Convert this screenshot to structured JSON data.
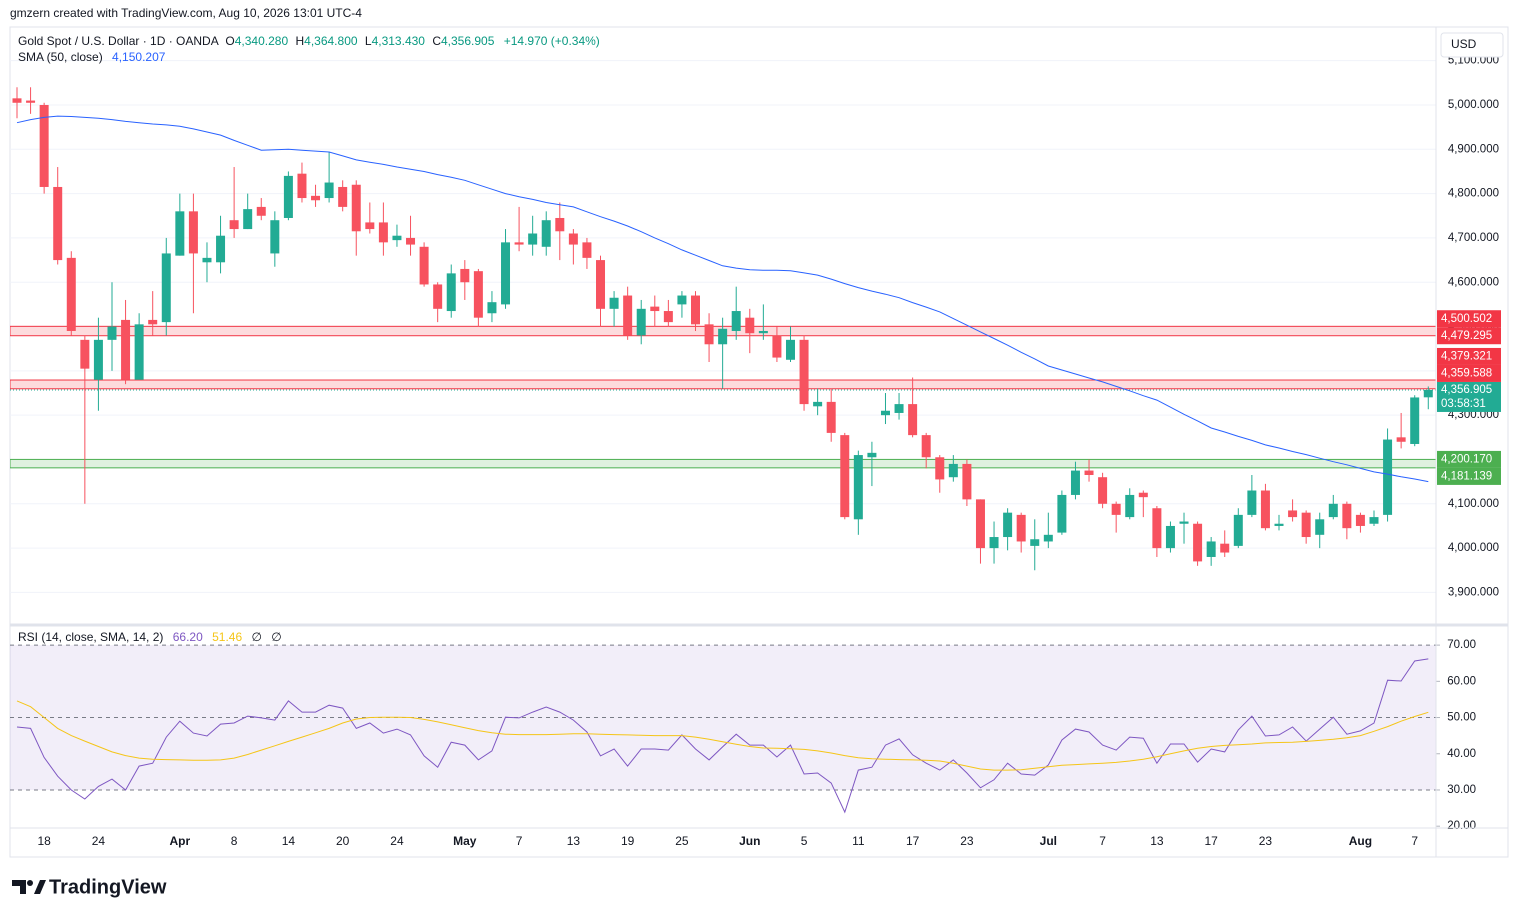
{
  "watermark": "gmzern created with TradingView.com, Aug 10, 2026 13:01 UTC-4",
  "currency": "USD",
  "brand": "TradingView",
  "legend": {
    "symbol": "Gold Spot / U.S. Dollar · 1D · OANDA",
    "ohlc": [
      {
        "key": "O",
        "value": "4,340.280"
      },
      {
        "key": "H",
        "value": "4,364.800"
      },
      {
        "key": "L",
        "value": "4,313.430"
      },
      {
        "key": "C",
        "value": "4,356.905"
      }
    ],
    "change": "+14.970 (+0.34%)",
    "sma_label": "SMA (50, close)",
    "sma_value": "4,150.207",
    "rsi_label": "RSI (14, close, SMA, 14, 2)",
    "rsi_value": "66.20",
    "rsi_sma_value": "51.46",
    "rsi_extra": [
      "∅",
      "∅"
    ]
  },
  "chart_data": {
    "type": "candlestick",
    "categories": [
      null,
      null,
      "18",
      null,
      null,
      null,
      "24",
      null,
      null,
      null,
      null,
      null,
      "Apr",
      null,
      null,
      null,
      "8",
      null,
      null,
      null,
      "14",
      null,
      null,
      null,
      "20",
      null,
      null,
      null,
      "24",
      null,
      null,
      null,
      null,
      "May",
      null,
      null,
      null,
      "7",
      null,
      null,
      null,
      "13",
      null,
      null,
      null,
      "19",
      null,
      null,
      null,
      "25",
      null,
      null,
      null,
      null,
      "Jun",
      null,
      null,
      null,
      "5",
      null,
      null,
      null,
      "11",
      null,
      null,
      null,
      "17",
      null,
      null,
      null,
      "23",
      null,
      null,
      null,
      null,
      null,
      "Jul",
      null,
      null,
      null,
      "7",
      null,
      null,
      null,
      "13",
      null,
      null,
      null,
      "17",
      null,
      null,
      null,
      "23",
      null,
      null,
      null,
      null,
      null,
      null,
      "Aug",
      null,
      null,
      null,
      "7",
      null
    ],
    "open": [
      5015,
      5010,
      5000,
      4815,
      4655,
      4470,
      4380,
      4470,
      4515,
      4380,
      4515,
      4510,
      4660,
      4760,
      4645,
      4645,
      4740,
      4720,
      4770,
      4665,
      4745,
      4845,
      4795,
      4790,
      4815,
      4820,
      4735,
      4735,
      4695,
      4700,
      4680,
      4595,
      4535,
      4630,
      4625,
      4530,
      4550,
      4690,
      4685,
      4680,
      4745,
      4710,
      4690,
      4650,
      4540,
      4570,
      4480,
      4545,
      4535,
      4550,
      4570,
      4505,
      4460,
      4490,
      4520,
      4485,
      4480,
      4425,
      4470,
      4320,
      4330,
      4255,
      4065,
      4205,
      4300,
      4305,
      4325,
      4255,
      4205,
      4160,
      4190,
      4110,
      4000,
      4025,
      4075,
      4005,
      4015,
      4035,
      4120,
      4175,
      4160,
      4100,
      4070,
      4125,
      4090,
      4000,
      4055,
      4055,
      3980,
      4010,
      4005,
      4075,
      4130,
      4050,
      4085,
      4080,
      4030,
      4070,
      4100,
      4075,
      4055,
      4075,
      4250,
      4235,
      4340.28
    ],
    "high": [
      5040,
      5040,
      5005,
      4860,
      4670,
      4480,
      4520,
      4600,
      4560,
      4530,
      4580,
      4700,
      4800,
      4800,
      4690,
      4750,
      4860,
      4800,
      4790,
      4760,
      4850,
      4870,
      4820,
      4895,
      4830,
      4830,
      4780,
      4780,
      4730,
      4750,
      4690,
      4600,
      4640,
      4650,
      4630,
      4580,
      4720,
      4770,
      4750,
      4760,
      4780,
      4720,
      4700,
      4660,
      4580,
      4590,
      4560,
      4570,
      4560,
      4580,
      4580,
      4530,
      4520,
      4590,
      4540,
      4550,
      4500,
      4500,
      4480,
      4360,
      4360,
      4260,
      4220,
      4240,
      4350,
      4350,
      4385,
      4260,
      4210,
      4210,
      4200,
      4110,
      4060,
      4090,
      4080,
      4065,
      4080,
      4130,
      4195,
      4200,
      4170,
      4105,
      4135,
      4130,
      4095,
      4060,
      4080,
      4060,
      4025,
      4040,
      4090,
      4165,
      4145,
      4075,
      4110,
      4085,
      4080,
      4120,
      4105,
      4080,
      4085,
      4270,
      4305,
      4345,
      4364.8
    ],
    "low": [
      4970,
      4980,
      4800,
      4640,
      4480,
      4100,
      4310,
      4400,
      4370,
      4385,
      4480,
      4480,
      4660,
      4530,
      4600,
      4620,
      4700,
      4720,
      4740,
      4635,
      4740,
      4780,
      4770,
      4780,
      4760,
      4660,
      4710,
      4660,
      4680,
      4660,
      4590,
      4510,
      4520,
      4560,
      4500,
      4510,
      4540,
      4670,
      4660,
      4660,
      4650,
      4640,
      4630,
      4500,
      4500,
      4470,
      4460,
      4500,
      4500,
      4520,
      4490,
      4420,
      4360,
      4470,
      4440,
      4470,
      4420,
      4420,
      4310,
      4300,
      4240,
      4065,
      4030,
      4140,
      4280,
      4290,
      4250,
      4180,
      4125,
      4150,
      4095,
      3965,
      3965,
      3995,
      3990,
      3950,
      4000,
      4030,
      4110,
      4150,
      4090,
      4035,
      4065,
      4070,
      3980,
      3990,
      4010,
      3960,
      3960,
      3980,
      4000,
      4070,
      4040,
      4040,
      4060,
      4010,
      4000,
      4065,
      4020,
      4035,
      4050,
      4060,
      4225,
      4230,
      4313.43
    ],
    "close": [
      5005,
      5005,
      4815,
      4650,
      4490,
      4405,
      4470,
      4500,
      4380,
      4505,
      4505,
      4665,
      4760,
      4665,
      4655,
      4705,
      4720,
      4765,
      4750,
      4740,
      4840,
      4790,
      4785,
      4825,
      4770,
      4715,
      4720,
      4690,
      4705,
      4685,
      4595,
      4540,
      4620,
      4600,
      4520,
      4555,
      4690,
      4685,
      4710,
      4740,
      4715,
      4685,
      4655,
      4540,
      4565,
      4480,
      4540,
      4535,
      4510,
      4570,
      4505,
      4460,
      4495,
      4535,
      4485,
      4490,
      4430,
      4470,
      4325,
      4330,
      4260,
      4070,
      4210,
      4215,
      4310,
      4325,
      4255,
      4205,
      4155,
      4190,
      4110,
      4000,
      4025,
      4080,
      4015,
      4020,
      4030,
      4120,
      4175,
      4165,
      4100,
      4075,
      4120,
      4115,
      4000,
      4050,
      4060,
      3970,
      4015,
      3990,
      4075,
      4130,
      4045,
      4055,
      4070,
      4025,
      4065,
      4100,
      4045,
      4050,
      4070,
      4245,
      4240,
      4340,
      4356.905
    ],
    "up_color": "#22ab94",
    "down_color": "#f7525f",
    "ylim": [
      3831,
      5176
    ],
    "yticks": [
      {
        "value": 3900,
        "label": "3,900.000"
      },
      {
        "value": 4000,
        "label": "4,000.000"
      },
      {
        "value": 4100,
        "label": "4,100.000"
      },
      {
        "value": 4200,
        "label": "4,200.000"
      },
      {
        "value": 4300,
        "label": "4,300.000"
      },
      {
        "value": 4400,
        "label": "4,400.000"
      },
      {
        "value": 4500,
        "label": "4,500.000"
      },
      {
        "value": 4600,
        "label": "4,600.000"
      },
      {
        "value": 4700,
        "label": "4,700.000"
      },
      {
        "value": 4800,
        "label": "4,800.000"
      },
      {
        "value": 4900,
        "label": "4,900.000"
      },
      {
        "value": 5000,
        "label": "5,000.000"
      },
      {
        "value": 5100,
        "label": "5,100.000"
      }
    ],
    "grid": true,
    "sma": {
      "color": "#2962ff",
      "values": [
        4960,
        4967,
        4972,
        4975,
        4974,
        4972,
        4970,
        4967,
        4963,
        4960,
        4957,
        4955,
        4952,
        4946,
        4939,
        4932,
        4920,
        4909,
        4898,
        4899,
        4900,
        4898,
        4896,
        4894,
        4885,
        4876,
        4871,
        4866,
        4860,
        4855,
        4850,
        4843,
        4837,
        4830,
        4820,
        4810,
        4800,
        4793,
        4787,
        4780,
        4775,
        4770,
        4759,
        4748,
        4738,
        4727,
        4714,
        4700,
        4687,
        4673,
        4661,
        4649,
        4637,
        4632,
        4628,
        4627,
        4627,
        4626,
        4621,
        4616,
        4607,
        4597,
        4588,
        4580,
        4573,
        4565,
        4554,
        4544,
        4533,
        4518,
        4503,
        4488,
        4473,
        4458,
        4442,
        4427,
        4411,
        4402,
        4393,
        4384,
        4375,
        4365,
        4355,
        4344,
        4334,
        4318,
        4302,
        4287,
        4271,
        4262,
        4252,
        4243,
        4233,
        4226,
        4218,
        4211,
        4203,
        4195,
        4188,
        4180,
        4172,
        4167,
        4161,
        4156,
        4150.207
      ]
    },
    "zones": [
      {
        "high": {
          "value": 4500.502,
          "label": "4,500.502"
        },
        "low": {
          "value": 4479.295,
          "label": "4,479.295"
        },
        "color": "#f23645"
      },
      {
        "high": {
          "value": 4379.321,
          "label": "4,379.321"
        },
        "low": {
          "value": 4359.588,
          "label": "4,359.588"
        },
        "color": "#f23645"
      },
      {
        "high": {
          "value": 4200.17,
          "label": "4,200.170"
        },
        "low": {
          "value": 4181.139,
          "label": "4,181.139"
        },
        "color": "#4caf50"
      }
    ],
    "last_price": {
      "value": 4356.905,
      "label": "4,356.905",
      "countdown": "03:58:31"
    },
    "rsi": {
      "ylim": [
        19.5,
        75
      ],
      "yticks": [
        {
          "value": 20,
          "label": "20.00"
        },
        {
          "value": 30,
          "label": "30.00"
        },
        {
          "value": 40,
          "label": "40.00"
        },
        {
          "value": 50,
          "label": "50.00"
        },
        {
          "value": 60,
          "label": "60.00"
        },
        {
          "value": 70,
          "label": "70.00"
        }
      ],
      "levels": [
        70,
        50,
        30
      ],
      "band_color": "#7e57c2",
      "series": [
        {
          "color": "#7e57c2",
          "values": [
            47.4,
            47,
            39,
            33.8,
            30,
            27.5,
            31,
            33,
            30,
            36.6,
            37.4,
            44.6,
            49,
            45.7,
            44.9,
            48.2,
            48.5,
            50.4,
            49.9,
            49.3,
            54.6,
            51.5,
            51.5,
            53.4,
            52.6,
            47,
            48.5,
            45.7,
            46.8,
            45.2,
            39.4,
            36.3,
            43.2,
            42.4,
            38.3,
            40.8,
            50.1,
            49.9,
            51.5,
            52.9,
            51.5,
            49.3,
            46,
            39.4,
            41.3,
            36.6,
            41.3,
            41.3,
            41,
            45.2,
            41.3,
            38.3,
            41.9,
            45.4,
            42.4,
            42.4,
            39.1,
            42.4,
            34.4,
            34.7,
            31.9,
            23.9,
            35.5,
            36.3,
            42.4,
            44.1,
            39.7,
            37.4,
            35.5,
            38.3,
            34.7,
            30.6,
            32.8,
            37.4,
            34.4,
            34.1,
            36.9,
            43.8,
            46.8,
            46,
            42.4,
            41,
            44.6,
            44.3,
            37.4,
            42.7,
            42.7,
            37.7,
            41.3,
            40.5,
            46.6,
            50.4,
            44.9,
            45.2,
            47.4,
            43.5,
            46.8,
            50.1,
            45.4,
            46.3,
            48.5,
            60.3,
            60.1,
            65.6,
            66.2
          ]
        },
        {
          "color": "#f5c518",
          "values": [
            54.6,
            53,
            50,
            47,
            45,
            43.5,
            42,
            40.5,
            39.5,
            38.8,
            38.5,
            38.4,
            38.3,
            38.2,
            38.2,
            38.3,
            38.8,
            39.8,
            41,
            42.2,
            43.4,
            44.6,
            45.8,
            47,
            48.5,
            49.6,
            50,
            50.1,
            50.1,
            50,
            49.5,
            48.8,
            48,
            47.2,
            46.4,
            45.8,
            45.4,
            45.3,
            45.3,
            45.3,
            45.4,
            45.5,
            45.5,
            45.4,
            45.3,
            45.2,
            45.1,
            45,
            45,
            45,
            44.6,
            44,
            43.3,
            42.6,
            42,
            41.6,
            41.5,
            41.4,
            41.2,
            40.8,
            40.2,
            39.5,
            38.9,
            38.6,
            38.5,
            38.4,
            38.3,
            38.2,
            38,
            37.4,
            36.6,
            35.8,
            35.5,
            35.5,
            35.6,
            36,
            36.4,
            36.8,
            37,
            37.2,
            37.4,
            37.6,
            38,
            38.5,
            39.2,
            40,
            40.8,
            41.5,
            42,
            42.3,
            42.5,
            42.7,
            43,
            43.1,
            43.2,
            43.4,
            43.7,
            44,
            44.4,
            45,
            46.2,
            47.5,
            49,
            50.3,
            51.46
          ]
        }
      ]
    }
  }
}
